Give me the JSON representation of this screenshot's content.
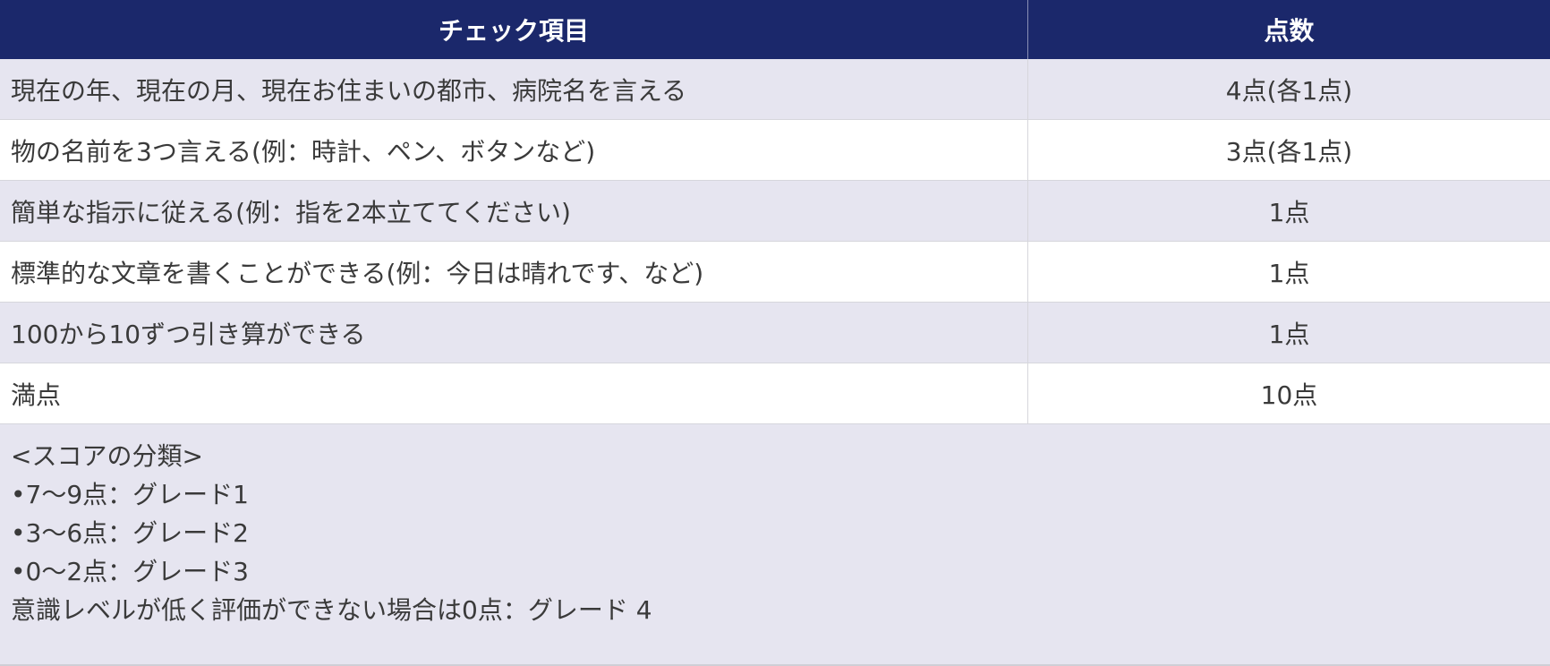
{
  "header": {
    "item": "チェック項目",
    "score": "点数"
  },
  "rows": [
    {
      "item": "現在の年、現在の月、現在お住まいの都市、病院名を言える",
      "score": "4点(各1点)"
    },
    {
      "item": "物の名前を3つ言える(例：時計、ペン、ボタンなど)",
      "score": "3点(各1点)"
    },
    {
      "item": "簡単な指示に従える(例：指を2本立ててください)",
      "score": "1点"
    },
    {
      "item": "標準的な文章を書くことができる(例：今日は晴れです、など)",
      "score": "1点"
    },
    {
      "item": "100から10ずつ引き算ができる",
      "score": "1点"
    },
    {
      "item": "満点",
      "score": "10点"
    }
  ],
  "notes": [
    "<スコアの分類>",
    "•7〜9点：グレード1",
    "•3〜6点：グレード2",
    "•0〜2点：グレード3",
    "意識レベルが低く評価ができない場合は0点：グレード 4"
  ],
  "colors": {
    "header_bg": "#1b286b",
    "stripe": "#e6e5f0"
  }
}
